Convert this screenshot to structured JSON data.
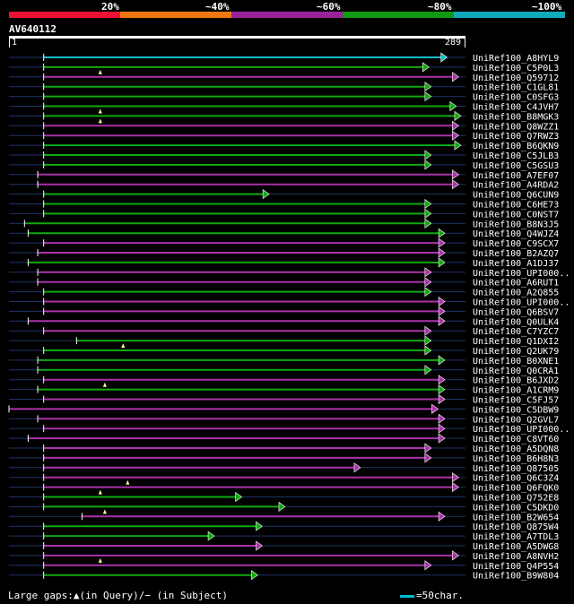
{
  "legend": {
    "segments": [
      {
        "label": "20%",
        "color": "#ee1133"
      },
      {
        "label": "~40%",
        "color": "#ee7711"
      },
      {
        "label": "~60%",
        "color": "#992299"
      },
      {
        "label": "~80%",
        "color": "#119911"
      },
      {
        "label": "~100%",
        "color": "#11aabb"
      }
    ]
  },
  "query": {
    "id": "AV640112",
    "start": "1",
    "end": "289"
  },
  "colors": {
    "green": "#11aa11",
    "magenta": "#aa33aa",
    "cyan": "#11bbcc",
    "guide": "#223366",
    "arrow_outline": "#000"
  },
  "footer": {
    "gaps_text": "Large gaps:▲(in Query)/− (in Subject)",
    "key_text": "=50char."
  },
  "hits": [
    {
      "id": "UniRef100_A8HYL9",
      "color": "cyan",
      "s": 0.076,
      "e": 0.96,
      "tri": null
    },
    {
      "id": "UniRef100_C5P0L3",
      "color": "green",
      "s": 0.076,
      "e": 0.92,
      "tri": 0.2
    },
    {
      "id": "UniRef100_Q59712",
      "color": "magenta",
      "s": 0.076,
      "e": 0.985,
      "tri": null
    },
    {
      "id": "UniRef100_C1GL81",
      "color": "green",
      "s": 0.076,
      "e": 0.925,
      "tri": null
    },
    {
      "id": "UniRef100_C0SFG3",
      "color": "green",
      "s": 0.076,
      "e": 0.925,
      "tri": null
    },
    {
      "id": "UniRef100_C4JVH7",
      "color": "green",
      "s": 0.076,
      "e": 0.98,
      "tri": 0.2
    },
    {
      "id": "UniRef100_B8MGK3",
      "color": "green",
      "s": 0.076,
      "e": 0.99,
      "tri": 0.2
    },
    {
      "id": "UniRef100_Q8WZZ1",
      "color": "magenta",
      "s": 0.076,
      "e": 0.985,
      "tri": null
    },
    {
      "id": "UniRef100_Q7RWZ3",
      "color": "magenta",
      "s": 0.076,
      "e": 0.985,
      "tri": null
    },
    {
      "id": "UniRef100_B6QKN9",
      "color": "green",
      "s": 0.076,
      "e": 0.99,
      "tri": null
    },
    {
      "id": "UniRef100_C5JLB3",
      "color": "green",
      "s": 0.076,
      "e": 0.925,
      "tri": null
    },
    {
      "id": "UniRef100_C5GSU3",
      "color": "green",
      "s": 0.076,
      "e": 0.925,
      "tri": null
    },
    {
      "id": "UniRef100_A7EF07",
      "color": "magenta",
      "s": 0.063,
      "e": 0.985,
      "tri": null
    },
    {
      "id": "UniRef100_A4RDA2",
      "color": "magenta",
      "s": 0.063,
      "e": 0.985,
      "tri": null
    },
    {
      "id": "UniRef100_Q6CUN9",
      "color": "green",
      "s": 0.076,
      "e": 0.57,
      "tri": null
    },
    {
      "id": "UniRef100_C6HE73",
      "color": "green",
      "s": 0.076,
      "e": 0.925,
      "tri": null
    },
    {
      "id": "UniRef100_C0NST7",
      "color": "green",
      "s": 0.076,
      "e": 0.925,
      "tri": null
    },
    {
      "id": "UniRef100_B8N3J5",
      "color": "green",
      "s": 0.034,
      "e": 0.925,
      "tri": null
    },
    {
      "id": "UniRef100_Q4WJZ4",
      "color": "green",
      "s": 0.042,
      "e": 0.955,
      "tri": null
    },
    {
      "id": "UniRef100_C9SCX7",
      "color": "magenta",
      "s": 0.076,
      "e": 0.955,
      "tri": null
    },
    {
      "id": "UniRef100_B2AZQ7",
      "color": "magenta",
      "s": 0.063,
      "e": 0.955,
      "tri": null
    },
    {
      "id": "UniRef100_A1DJ37",
      "color": "green",
      "s": 0.042,
      "e": 0.955,
      "tri": null
    },
    {
      "id": "UniRef100_UPI000..",
      "color": "magenta",
      "s": 0.063,
      "e": 0.925,
      "tri": null
    },
    {
      "id": "UniRef100_A6RUT1",
      "color": "magenta",
      "s": 0.063,
      "e": 0.925,
      "tri": null
    },
    {
      "id": "UniRef100_A2Q855",
      "color": "green",
      "s": 0.076,
      "e": 0.925,
      "tri": null
    },
    {
      "id": "UniRef100_UPI000..",
      "color": "magenta",
      "s": 0.076,
      "e": 0.955,
      "tri": null
    },
    {
      "id": "UniRef100_Q6BSV7",
      "color": "magenta",
      "s": 0.076,
      "e": 0.955,
      "tri": null
    },
    {
      "id": "UniRef100_Q0ULK4",
      "color": "magenta",
      "s": 0.042,
      "e": 0.955,
      "tri": null
    },
    {
      "id": "UniRef100_C7YZC7",
      "color": "magenta",
      "s": 0.076,
      "e": 0.925,
      "tri": null
    },
    {
      "id": "UniRef100_Q1DXI2",
      "color": "green",
      "s": 0.148,
      "e": 0.925,
      "tri": 0.25
    },
    {
      "id": "UniRef100_Q2UK79",
      "color": "green",
      "s": 0.076,
      "e": 0.925,
      "tri": null
    },
    {
      "id": "UniRef100_B0XNE1",
      "color": "green",
      "s": 0.063,
      "e": 0.955,
      "tri": null
    },
    {
      "id": "UniRef100_Q0CRA1",
      "color": "green",
      "s": 0.063,
      "e": 0.925,
      "tri": null
    },
    {
      "id": "UniRef100_B6JXD2",
      "color": "magenta",
      "s": 0.076,
      "e": 0.955,
      "tri": 0.21
    },
    {
      "id": "UniRef100_A1CRM9",
      "color": "green",
      "s": 0.063,
      "e": 0.955,
      "tri": null
    },
    {
      "id": "UniRef100_C5FJ57",
      "color": "magenta",
      "s": 0.076,
      "e": 0.955,
      "tri": null
    },
    {
      "id": "UniRef100_C5DBW9",
      "color": "magenta",
      "s": 0.0,
      "e": 0.94,
      "tri": null
    },
    {
      "id": "UniRef100_Q2GVL7",
      "color": "magenta",
      "s": 0.063,
      "e": 0.955,
      "tri": null
    },
    {
      "id": "UniRef100_UPI000..",
      "color": "magenta",
      "s": 0.076,
      "e": 0.955,
      "tri": null
    },
    {
      "id": "UniRef100_C8VT60",
      "color": "magenta",
      "s": 0.042,
      "e": 0.955,
      "tri": null
    },
    {
      "id": "UniRef100_A5DQN8",
      "color": "magenta",
      "s": 0.076,
      "e": 0.925,
      "tri": null
    },
    {
      "id": "UniRef100_B6H8N3",
      "color": "magenta",
      "s": 0.076,
      "e": 0.925,
      "tri": null
    },
    {
      "id": "UniRef100_Q87505",
      "color": "magenta",
      "s": 0.076,
      "e": 0.77,
      "tri": null
    },
    {
      "id": "UniRef100_Q6C3Z4",
      "color": "magenta",
      "s": 0.076,
      "e": 0.985,
      "tri": 0.26
    },
    {
      "id": "UniRef100_Q6FQK0",
      "color": "magenta",
      "s": 0.076,
      "e": 0.985,
      "tri": 0.2
    },
    {
      "id": "UniRef100_Q752E8",
      "color": "green",
      "s": 0.076,
      "e": 0.51,
      "tri": null
    },
    {
      "id": "UniRef100_C5DKD0",
      "color": "green",
      "s": 0.076,
      "e": 0.605,
      "tri": 0.21
    },
    {
      "id": "UniRef100_B2W654",
      "color": "magenta",
      "s": 0.16,
      "e": 0.955,
      "tri": null
    },
    {
      "id": "UniRef100_Q875W4",
      "color": "green",
      "s": 0.076,
      "e": 0.555,
      "tri": null
    },
    {
      "id": "UniRef100_A7TDL3",
      "color": "green",
      "s": 0.076,
      "e": 0.45,
      "tri": null
    },
    {
      "id": "UniRef100_A5DWG8",
      "color": "magenta",
      "s": 0.076,
      "e": 0.555,
      "tri": null
    },
    {
      "id": "UniRef100_A8NVH2",
      "color": "magenta",
      "s": 0.076,
      "e": 0.985,
      "tri": 0.2
    },
    {
      "id": "UniRef100_Q4P554",
      "color": "magenta",
      "s": 0.076,
      "e": 0.925,
      "tri": null
    },
    {
      "id": "UniRef100_B9W804",
      "color": "green",
      "s": 0.076,
      "e": 0.545,
      "tri": null
    }
  ]
}
